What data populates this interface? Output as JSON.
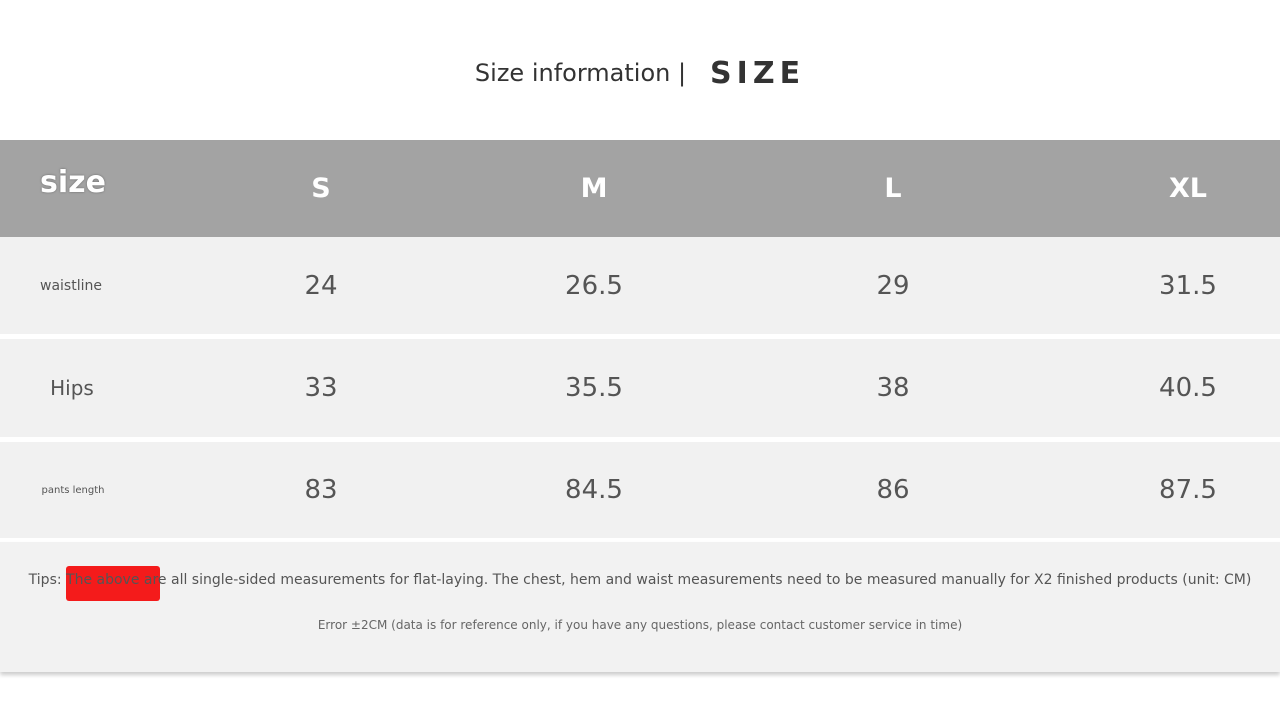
{
  "title": {
    "text": "Size information |",
    "emphasis": "SIZE"
  },
  "table": {
    "header": {
      "label": "size",
      "sizes": [
        "S",
        "M",
        "L",
        "XL"
      ]
    },
    "rows": [
      {
        "label": "waistline",
        "values": [
          "24",
          "26.5",
          "29",
          "31.5"
        ]
      },
      {
        "label": "Hips",
        "values": [
          "33",
          "35.5",
          "38",
          "40.5"
        ]
      },
      {
        "label": "pants length",
        "values": [
          "83",
          "84.5",
          "86",
          "87.5"
        ]
      }
    ]
  },
  "footer": {
    "tips": "Tips: The above are all single-sided measurements for flat-laying. The chest, hem and waist measurements need to be measured manually for X2 finished products (unit: CM)",
    "error": "Error ±2CM (data is for reference only, if you have any questions, please contact customer service in time)"
  },
  "colors": {
    "header_bg": "#a3a3a3",
    "row_bg": "#f1f1f1",
    "tips_highlight": "#f41b1b"
  }
}
